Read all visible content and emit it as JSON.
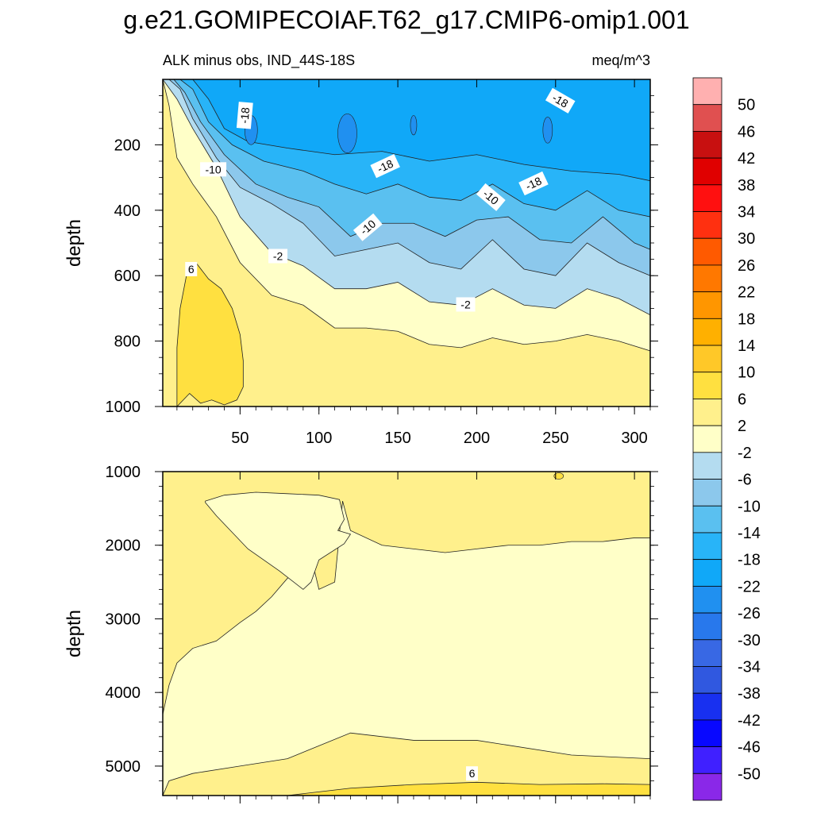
{
  "chart_data": [
    {
      "type": "heatmap",
      "title": "g.e21.GOMIPECOIAF.T62_g17.CMIP6-omip1.001",
      "subtitle_left": "ALK minus obs, IND_44S-18S",
      "subtitle_right": "meq/m^3",
      "xlabel": "",
      "ylabel": "depth",
      "xlim": [
        1,
        310
      ],
      "ylim": [
        0,
        1000
      ],
      "x_ticks": [
        "50",
        "100",
        "150",
        "200",
        "250",
        "300"
      ],
      "y_ticks": [
        "200",
        "400",
        "600",
        "800",
        "1000"
      ],
      "contour_labels": [
        "-18",
        "-18",
        "-18",
        "-18",
        "-10",
        "-10",
        "-10",
        "-2",
        "-2",
        "6"
      ],
      "contours": [
        {
          "level": "6",
          "x": [
            10,
            18,
            25,
            32,
            40,
            48,
            52,
            52,
            50,
            45,
            38,
            30,
            22,
            16,
            12,
            10,
            10
          ],
          "y": [
            1000,
            960,
            990,
            980,
            995,
            980,
            940,
            860,
            780,
            700,
            640,
            610,
            560,
            600,
            700,
            820,
            1000
          ]
        },
        {
          "level": "2",
          "x": [
            1,
            5,
            10,
            20,
            35,
            50,
            70,
            90,
            110,
            130,
            150,
            170,
            190,
            210,
            230,
            250,
            270,
            290,
            310
          ],
          "y": [
            0,
            80,
            240,
            320,
            420,
            560,
            660,
            690,
            760,
            760,
            770,
            810,
            820,
            790,
            810,
            800,
            780,
            800,
            830
          ]
        },
        {
          "level": "-2",
          "x": [
            1,
            10,
            20,
            35,
            50,
            70,
            90,
            110,
            130,
            150,
            170,
            190,
            210,
            230,
            250,
            270,
            290,
            310
          ],
          "y": [
            0,
            60,
            150,
            270,
            420,
            530,
            570,
            640,
            640,
            620,
            680,
            690,
            640,
            690,
            700,
            640,
            670,
            720
          ]
        },
        {
          "level": "-6",
          "x": [
            5,
            12,
            20,
            35,
            50,
            70,
            90,
            110,
            130,
            150,
            170,
            190,
            210,
            230,
            250,
            270,
            290,
            310
          ],
          "y": [
            0,
            30,
            120,
            240,
            330,
            380,
            440,
            540,
            520,
            500,
            560,
            580,
            490,
            580,
            600,
            500,
            560,
            600
          ]
        },
        {
          "level": "-10",
          "x": [
            8,
            15,
            25,
            40,
            60,
            80,
            100,
            120,
            140,
            160,
            180,
            200,
            220,
            240,
            260,
            280,
            300,
            310
          ],
          "y": [
            0,
            40,
            130,
            230,
            320,
            360,
            390,
            480,
            440,
            440,
            480,
            430,
            420,
            490,
            500,
            420,
            500,
            520
          ]
        },
        {
          "level": "-14",
          "x": [
            12,
            20,
            30,
            45,
            65,
            90,
            110,
            130,
            150,
            170,
            190,
            210,
            230,
            250,
            270,
            290,
            310
          ],
          "y": [
            0,
            30,
            130,
            200,
            250,
            280,
            320,
            350,
            320,
            360,
            370,
            320,
            380,
            400,
            340,
            400,
            420
          ]
        },
        {
          "level": "-18",
          "x": [
            20,
            30,
            40,
            55,
            80,
            110,
            140,
            170,
            200,
            230,
            260,
            290,
            310
          ],
          "y": [
            0,
            60,
            150,
            190,
            210,
            230,
            220,
            250,
            230,
            260,
            280,
            290,
            310
          ]
        }
      ],
      "label_positions": [
        {
          "text": "-18",
          "x": 53,
          "y": 110,
          "rotate": -85
        },
        {
          "text": "-18",
          "x": 142,
          "y": 265,
          "rotate": -25
        },
        {
          "text": "-18",
          "x": 236,
          "y": 318,
          "rotate": -25
        },
        {
          "text": "-18",
          "x": 253,
          "y": 65,
          "rotate": 30
        },
        {
          "text": "-10",
          "x": 33,
          "y": 275,
          "rotate": 0
        },
        {
          "text": "-10",
          "x": 131,
          "y": 452,
          "rotate": -40
        },
        {
          "text": "-10",
          "x": 209,
          "y": 360,
          "rotate": 40
        },
        {
          "text": "-2",
          "x": 74,
          "y": 540,
          "rotate": 0
        },
        {
          "text": "-2",
          "x": 193,
          "y": 688,
          "rotate": 0
        },
        {
          "text": "6",
          "x": 19,
          "y": 580,
          "rotate": 0
        }
      ]
    },
    {
      "type": "heatmap",
      "xlabel": "",
      "ylabel": "depth",
      "xlim": [
        1,
        310
      ],
      "ylim": [
        1000,
        5400
      ],
      "y_ticks": [
        "1000",
        "2000",
        "3000",
        "4000",
        "5000"
      ],
      "contour_labels": [
        "6"
      ],
      "contours": [
        {
          "level": "2",
          "x": [
            1,
            10,
            20,
            40,
            60,
            80,
            92,
            98,
            96,
            90,
            80,
            60,
            40,
            20,
            5,
            1
          ],
          "y": [
            1000,
            1000,
            1000,
            1000,
            1000,
            1000,
            1000,
            1000,
            1000,
            1000,
            1000,
            1000,
            1000,
            1000,
            1000,
            1000
          ]
        }
      ],
      "label_positions": [
        {
          "text": "6",
          "x": 197,
          "y": 5100,
          "rotate": 0
        }
      ]
    }
  ],
  "colorbar": {
    "labels": [
      "50",
      "46",
      "42",
      "38",
      "34",
      "30",
      "26",
      "22",
      "18",
      "14",
      "10",
      "6",
      "2",
      "-2",
      "-6",
      "-10",
      "-14",
      "-18",
      "-22",
      "-26",
      "-30",
      "-34",
      "-38",
      "-42",
      "-46",
      "-50"
    ],
    "colors": [
      "#ffb0b0",
      "#e05050",
      "#c81010",
      "#e00000",
      "#ff1010",
      "#ff3010",
      "#ff5a00",
      "#ff7800",
      "#ff9600",
      "#ffb000",
      "#ffc828",
      "#ffe040",
      "#fff08c",
      "#ffffc8",
      "#b4dcf0",
      "#8cc8ec",
      "#5ac0f0",
      "#28b4f8",
      "#10a8f8",
      "#2090f0",
      "#2878ec",
      "#3868e4",
      "#3058e0",
      "#1830f0",
      "#0808ff",
      "#4020ff",
      "#8a28e8"
    ]
  },
  "fill_colors": {
    "pos6": "#ffe040",
    "pos2": "#fff08c",
    "neg2": "#ffffc8",
    "neg6": "#b4dcf0",
    "neg10": "#8cc8ec",
    "neg14": "#5ac0f0",
    "neg18": "#28b4f8",
    "neg22": "#10a8f8",
    "neg26": "#2090f0"
  }
}
